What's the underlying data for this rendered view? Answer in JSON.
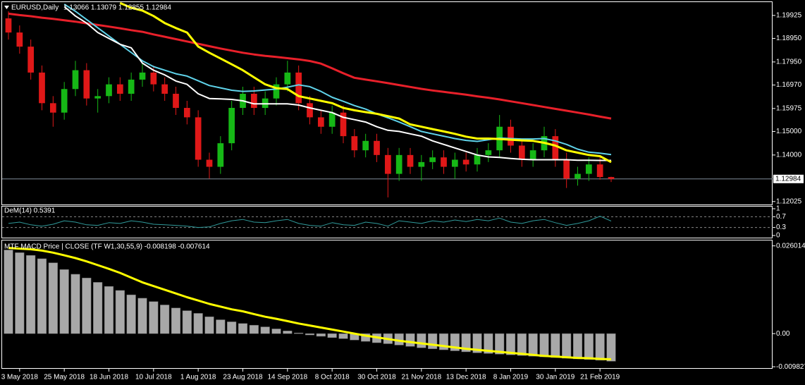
{
  "chart_data": [
    {
      "type": "candlestick",
      "title": "EURUSD,Daily",
      "ohlc": "1.13066 1.13079 1.12855 1.12984",
      "categories": [
        null,
        "3 May 2018",
        null,
        null,
        null,
        "25 May 2018",
        null,
        null,
        null,
        "18 Jun 2018",
        null,
        null,
        null,
        "10 Jul 2018",
        null,
        null,
        null,
        "1 Aug 2018",
        null,
        null,
        null,
        "23 Aug 2018",
        null,
        null,
        null,
        "14 Sep 2018",
        null,
        null,
        null,
        "8 Oct 2018",
        null,
        null,
        null,
        "30 Oct 2018",
        null,
        null,
        null,
        "21 Nov 2018",
        null,
        null,
        null,
        "13 Dec 2018",
        null,
        null,
        null,
        "8 Jan 2019",
        null,
        null,
        null,
        "30 Jan 2019",
        null,
        null,
        null,
        "21 Feb 2019",
        null
      ],
      "open": [
        1.198,
        1.192,
        1.186,
        1.175,
        1.162,
        1.158,
        1.168,
        1.176,
        1.164,
        1.165,
        1.17,
        1.166,
        1.172,
        1.175,
        1.17,
        1.166,
        1.16,
        1.156,
        1.138,
        1.135,
        1.145,
        1.16,
        1.166,
        1.16,
        1.164,
        1.17,
        1.175,
        1.162,
        1.156,
        1.152,
        1.158,
        1.148,
        1.142,
        1.146,
        1.14,
        1.132,
        1.14,
        1.135,
        1.137,
        1.139,
        1.135,
        1.138,
        1.136,
        1.14,
        1.142,
        1.152,
        1.144,
        1.138,
        1.142,
        1.148,
        1.138,
        1.13,
        1.132,
        1.136,
        1.13066
      ],
      "high": [
        1.201,
        1.195,
        1.189,
        1.178,
        1.165,
        1.171,
        1.18,
        1.179,
        1.168,
        1.173,
        1.173,
        1.175,
        1.179,
        1.178,
        1.173,
        1.169,
        1.163,
        1.159,
        1.141,
        1.148,
        1.163,
        1.169,
        1.169,
        1.167,
        1.173,
        1.18,
        1.178,
        1.165,
        1.159,
        1.161,
        1.161,
        1.151,
        1.149,
        1.149,
        1.143,
        1.143,
        1.143,
        1.14,
        1.142,
        1.142,
        1.141,
        1.141,
        1.143,
        1.145,
        1.157,
        1.155,
        1.147,
        1.145,
        1.152,
        1.151,
        1.141,
        1.135,
        1.139,
        1.139,
        1.13079
      ],
      "low": [
        1.189,
        1.183,
        1.172,
        1.159,
        1.152,
        1.155,
        1.165,
        1.161,
        1.158,
        1.162,
        1.163,
        1.163,
        1.169,
        1.167,
        1.163,
        1.157,
        1.153,
        1.135,
        1.13,
        1.132,
        1.142,
        1.157,
        1.157,
        1.157,
        1.161,
        1.167,
        1.159,
        1.153,
        1.149,
        1.149,
        1.145,
        1.139,
        1.139,
        1.137,
        1.122,
        1.129,
        1.132,
        1.129,
        1.134,
        1.132,
        1.13,
        1.133,
        1.133,
        1.137,
        1.139,
        1.141,
        1.135,
        1.135,
        1.139,
        1.135,
        1.126,
        1.127,
        1.129,
        1.1295,
        1.12855
      ],
      "close": [
        1.192,
        1.186,
        1.175,
        1.162,
        1.158,
        1.168,
        1.176,
        1.164,
        1.165,
        1.17,
        1.166,
        1.172,
        1.175,
        1.17,
        1.166,
        1.16,
        1.156,
        1.138,
        1.135,
        1.145,
        1.16,
        1.166,
        1.16,
        1.164,
        1.17,
        1.175,
        1.162,
        1.156,
        1.152,
        1.158,
        1.148,
        1.142,
        1.146,
        1.14,
        1.132,
        1.14,
        1.135,
        1.137,
        1.139,
        1.135,
        1.138,
        1.136,
        1.14,
        1.142,
        1.152,
        1.144,
        1.138,
        1.142,
        1.148,
        1.138,
        1.13,
        1.132,
        1.136,
        1.13066,
        1.12984
      ],
      "up_color": "#16b816",
      "down_color": "#e01818",
      "series": [
        {
          "color": "#e8202a",
          "width": 3,
          "values": [
            1.2,
            1.1994,
            1.1989,
            1.1983,
            1.1978,
            1.1972,
            1.1966,
            1.1959,
            1.1952,
            1.1945,
            1.1938,
            1.193,
            1.1923,
            1.1912,
            1.1902,
            1.1892,
            1.1882,
            1.1872,
            1.1862,
            1.1852,
            1.1843,
            1.1834,
            1.1827,
            1.1821,
            1.1816,
            1.1811,
            1.1806,
            1.1799,
            1.1788,
            1.1768,
            1.1747,
            1.1728,
            1.172,
            1.1713,
            1.1705,
            1.1697,
            1.1689,
            1.1681,
            1.1674,
            1.1668,
            1.1662,
            1.1656,
            1.1649,
            1.1643,
            1.1636,
            1.1628,
            1.162,
            1.1612,
            1.1604,
            1.1596,
            1.1588,
            1.158,
            1.1572,
            1.1563,
            1.1555
          ]
        },
        {
          "color": "#5fd3ea",
          "width": 2,
          "values": [
            null,
            null,
            null,
            null,
            null,
            1.204,
            1.201,
            1.1975,
            1.194,
            1.1905,
            1.187,
            1.1835,
            1.18,
            1.1775,
            1.176,
            1.1745,
            1.1735,
            1.1715,
            1.1695,
            1.1685,
            1.1675,
            1.167,
            1.1672,
            1.1676,
            1.168,
            1.1688,
            1.1698,
            1.169,
            1.167,
            1.1645,
            1.1628,
            1.161,
            1.1595,
            1.1575,
            1.1558,
            1.154,
            1.152,
            1.15,
            1.149,
            1.148,
            1.147,
            1.1462,
            1.1458,
            1.1465,
            1.1472,
            1.147,
            1.1468,
            1.1468,
            1.147,
            1.146,
            1.1445,
            1.1425,
            1.1412,
            1.1408,
            1.1402
          ]
        },
        {
          "color": "#ffffff",
          "width": 2,
          "values": [
            null,
            null,
            null,
            null,
            null,
            1.203,
            1.199,
            1.196,
            1.192,
            1.1895,
            1.187,
            1.1855,
            1.179,
            1.176,
            1.174,
            1.1714,
            1.17,
            1.166,
            1.164,
            1.1638,
            1.1636,
            1.163,
            1.1617,
            1.1617,
            1.1617,
            1.1617,
            1.1612,
            1.16,
            1.159,
            1.158,
            1.156,
            1.155,
            1.154,
            1.152,
            1.1505,
            1.15,
            1.149,
            1.148,
            1.146,
            1.1445,
            1.143,
            1.1415,
            1.14,
            1.1392,
            1.139,
            1.1385,
            1.1382,
            1.138,
            1.138,
            1.138,
            1.138,
            1.1378,
            1.1378,
            1.1377,
            1.1377
          ]
        },
        {
          "color": "#ffff00",
          "width": 3,
          "values": [
            null,
            null,
            null,
            null,
            null,
            null,
            null,
            null,
            null,
            null,
            1.2045,
            1.2025,
            1.2013,
            1.199,
            1.196,
            1.1939,
            1.192,
            1.186,
            1.1834,
            1.181,
            1.1785,
            1.176,
            1.173,
            1.17,
            1.1684,
            1.168,
            1.165,
            1.164,
            1.163,
            1.162,
            1.16,
            1.159,
            1.1582,
            1.1575,
            1.1565,
            1.1555,
            1.153,
            1.152,
            1.151,
            1.15,
            1.149,
            1.1478,
            1.147,
            1.147,
            1.1468,
            1.1465,
            1.1462,
            1.146,
            1.1452,
            1.144,
            1.142,
            1.141,
            1.14,
            1.1395,
            1.137
          ]
        }
      ],
      "last_price": 1.12984,
      "ylim": [
        1.119,
        1.2052
      ],
      "yticks": [
        1.19925,
        {
          "value": 1.1895,
          "label": "1.18950"
        },
        {
          "value": 1.1795,
          "label": "1.17950"
        },
        {
          "value": 1.1697,
          "label": "1.16970"
        },
        1.15975,
        {
          "value": 1.15,
          "label": "1.15000"
        },
        {
          "value": 1.14,
          "label": "1.14000"
        },
        1.12025
      ]
    },
    {
      "type": "line",
      "title": "DeM(14) 0.5391",
      "color": "#2f9a9a",
      "values": [
        0.45,
        0.5,
        0.4,
        0.35,
        0.42,
        0.55,
        0.5,
        0.4,
        0.38,
        0.48,
        0.45,
        0.55,
        0.5,
        0.42,
        0.4,
        0.38,
        0.35,
        0.3,
        0.32,
        0.45,
        0.55,
        0.6,
        0.5,
        0.48,
        0.55,
        0.6,
        0.45,
        0.38,
        0.35,
        0.48,
        0.4,
        0.38,
        0.5,
        0.45,
        0.35,
        0.55,
        0.5,
        0.45,
        0.55,
        0.5,
        0.58,
        0.52,
        0.6,
        0.55,
        0.65,
        0.5,
        0.45,
        0.55,
        0.6,
        0.48,
        0.38,
        0.45,
        0.55,
        0.72,
        0.5391
      ],
      "ylim": [
        0,
        1
      ],
      "yticks": [
        1,
        0.7,
        0.3,
        0
      ]
    },
    {
      "type": "bar",
      "title": "MTF MACD Price | CLOSE  (TF W1,30,55,9) -0.008198 -0.007614",
      "series": [
        {
          "type": "bar",
          "color": "#a8a8a8",
          "values": [
            0.0248,
            0.024,
            0.0232,
            0.0222,
            0.021,
            0.019,
            0.0176,
            0.0165,
            0.0152,
            0.014,
            0.0128,
            0.0115,
            0.0105,
            0.0095,
            0.0085,
            0.0076,
            0.0068,
            0.006,
            0.005,
            0.0041,
            0.0035,
            0.003,
            0.0025,
            0.002,
            0.0014,
            0.0008,
            0.0002,
            -0.0004,
            -0.0008,
            -0.0012,
            -0.0015,
            -0.0019,
            -0.0023,
            -0.0027,
            -0.003,
            -0.0034,
            -0.0038,
            -0.0042,
            -0.0045,
            -0.0048,
            -0.0051,
            -0.0054,
            -0.0057,
            -0.0059,
            -0.0061,
            -0.0063,
            -0.0065,
            -0.0067,
            -0.0069,
            -0.0071,
            -0.0073,
            -0.0075,
            -0.0077,
            -0.0079,
            -0.008198
          ]
        },
        {
          "type": "line",
          "color": "#ffff00",
          "values": [
            0.0254,
            0.0252,
            0.025,
            0.0246,
            0.024,
            0.0232,
            0.0224,
            0.0214,
            0.0203,
            0.0192,
            0.018,
            0.0166,
            0.0152,
            0.0141,
            0.013,
            0.0119,
            0.0108,
            0.0098,
            0.0088,
            0.008,
            0.0072,
            0.0066,
            0.0058,
            0.005,
            0.0044,
            0.0037,
            0.003,
            0.0024,
            0.0018,
            0.0012,
            0.0006,
            0.0,
            -0.0006,
            -0.0011,
            -0.0016,
            -0.0021,
            -0.0025,
            -0.0029,
            -0.0033,
            -0.0037,
            -0.0041,
            -0.0045,
            -0.0048,
            -0.0051,
            -0.0054,
            -0.0057,
            -0.006,
            -0.0063,
            -0.0066,
            -0.0068,
            -0.007,
            -0.0072,
            -0.0073,
            -0.0075,
            -0.007614
          ]
        }
      ],
      "ylim": [
        -0.0098,
        0.0272
      ],
      "yticks": [
        0.026014,
        {
          "value": 0,
          "label": "0.00"
        },
        -0.009827
      ]
    }
  ]
}
